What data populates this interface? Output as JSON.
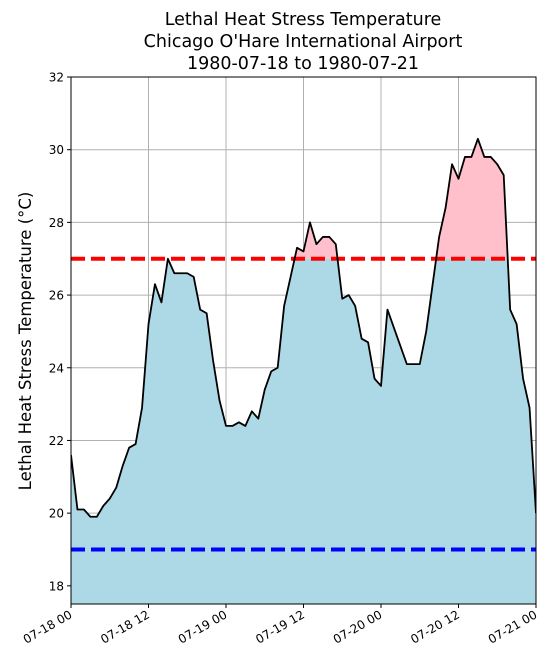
{
  "chart_data": {
    "type": "area",
    "title_lines": [
      "Lethal Heat Stress Temperature",
      "Chicago O'Hare International Airport",
      "1980-07-18 to 1980-07-21"
    ],
    "xlabel": "",
    "ylabel": "Lethal Heat Stress Temperature (°C)",
    "xlim_hours": [
      0,
      72
    ],
    "ylim": [
      17.5,
      32
    ],
    "yticks": [
      18,
      20,
      22,
      24,
      26,
      28,
      30,
      32
    ],
    "xticks": [
      {
        "h": 0,
        "label": "07-18 00"
      },
      {
        "h": 12,
        "label": "07-18 12"
      },
      {
        "h": 24,
        "label": "07-19 00"
      },
      {
        "h": 36,
        "label": "07-19 12"
      },
      {
        "h": 48,
        "label": "07-20 00"
      },
      {
        "h": 60,
        "label": "07-20 12"
      },
      {
        "h": 72,
        "label": "07-21 00"
      }
    ],
    "grid": true,
    "upper_threshold": 27,
    "lower_threshold": 19,
    "colors": {
      "fill_below": "#add8e6",
      "fill_above": "#ffc0cb",
      "line": "#000000",
      "upper_line": "#ff0000",
      "lower_line": "#0000ff",
      "grid": "#b0b0b0"
    },
    "series": [
      {
        "x": [
          0,
          1,
          2,
          3,
          4,
          5,
          6,
          7,
          8,
          9,
          10,
          11,
          12,
          13,
          14,
          15,
          16,
          17,
          18,
          19,
          20,
          21,
          22,
          23,
          24,
          25,
          26,
          27,
          28,
          29,
          30,
          31,
          32,
          33,
          34,
          35,
          36,
          37,
          38,
          39,
          40,
          41,
          42,
          43,
          44,
          45,
          46,
          47,
          48,
          49,
          50,
          51,
          52,
          53,
          54,
          55,
          56,
          57,
          58,
          59,
          60,
          61,
          62,
          63,
          64,
          65,
          66,
          67,
          68,
          69,
          70,
          71,
          72
        ],
        "values": [
          21.6,
          20.1,
          20.1,
          19.9,
          19.9,
          20.2,
          20.4,
          20.7,
          21.3,
          21.8,
          21.9,
          22.9,
          25.2,
          26.3,
          25.8,
          27.0,
          26.6,
          26.6,
          26.6,
          26.5,
          25.6,
          25.5,
          24.2,
          23.1,
          22.4,
          22.4,
          22.5,
          22.4,
          22.8,
          22.6,
          23.4,
          23.9,
          24.0,
          25.7,
          26.5,
          27.3,
          27.2,
          28.0,
          27.4,
          27.6,
          27.6,
          27.4,
          25.9,
          26.0,
          25.7,
          24.8,
          24.7,
          23.7,
          23.5,
          25.6,
          25.1,
          24.6,
          24.1,
          24.1,
          24.1,
          25.0,
          26.3,
          27.6,
          28.4,
          29.6,
          29.2,
          29.8,
          29.8,
          30.3,
          29.8,
          29.8,
          29.6,
          29.3,
          25.6,
          25.2,
          23.7,
          22.9,
          20.0
        ]
      }
    ]
  }
}
